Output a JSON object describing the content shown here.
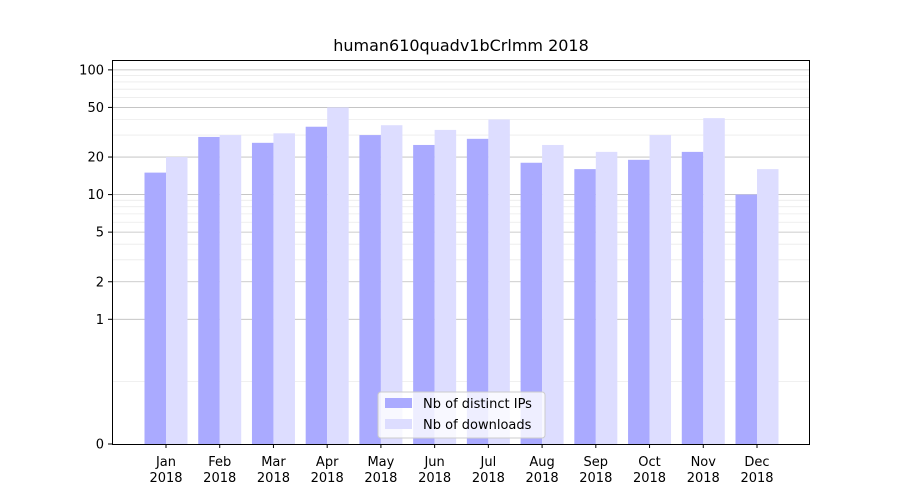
{
  "chart_data": {
    "type": "bar",
    "title": "human610quadv1bCrlmm 2018",
    "xlabel": "",
    "ylabel": "",
    "yscale": "symlog",
    "ylim": [
      0,
      120
    ],
    "yticks": [
      0,
      1,
      2,
      5,
      10,
      20,
      50,
      100
    ],
    "ytick_labels": [
      "0",
      "1",
      "2",
      "5",
      "10",
      "20",
      "50",
      "100"
    ],
    "categories": [
      {
        "month": "Jan",
        "year": "2018"
      },
      {
        "month": "Feb",
        "year": "2018"
      },
      {
        "month": "Mar",
        "year": "2018"
      },
      {
        "month": "Apr",
        "year": "2018"
      },
      {
        "month": "May",
        "year": "2018"
      },
      {
        "month": "Jun",
        "year": "2018"
      },
      {
        "month": "Jul",
        "year": "2018"
      },
      {
        "month": "Aug",
        "year": "2018"
      },
      {
        "month": "Sep",
        "year": "2018"
      },
      {
        "month": "Oct",
        "year": "2018"
      },
      {
        "month": "Nov",
        "year": "2018"
      },
      {
        "month": "Dec",
        "year": "2018"
      }
    ],
    "series": [
      {
        "name": "Nb of distinct IPs",
        "color": "#aaaaff",
        "values": [
          15,
          29,
          26,
          35,
          30,
          25,
          28,
          18,
          16,
          19,
          22,
          10
        ]
      },
      {
        "name": "Nb of downloads",
        "color": "#ddddff",
        "values": [
          20,
          30,
          31,
          50,
          36,
          33,
          40,
          25,
          22,
          30,
          41,
          16
        ]
      }
    ],
    "legend": "bottom-center",
    "grid": true
  }
}
